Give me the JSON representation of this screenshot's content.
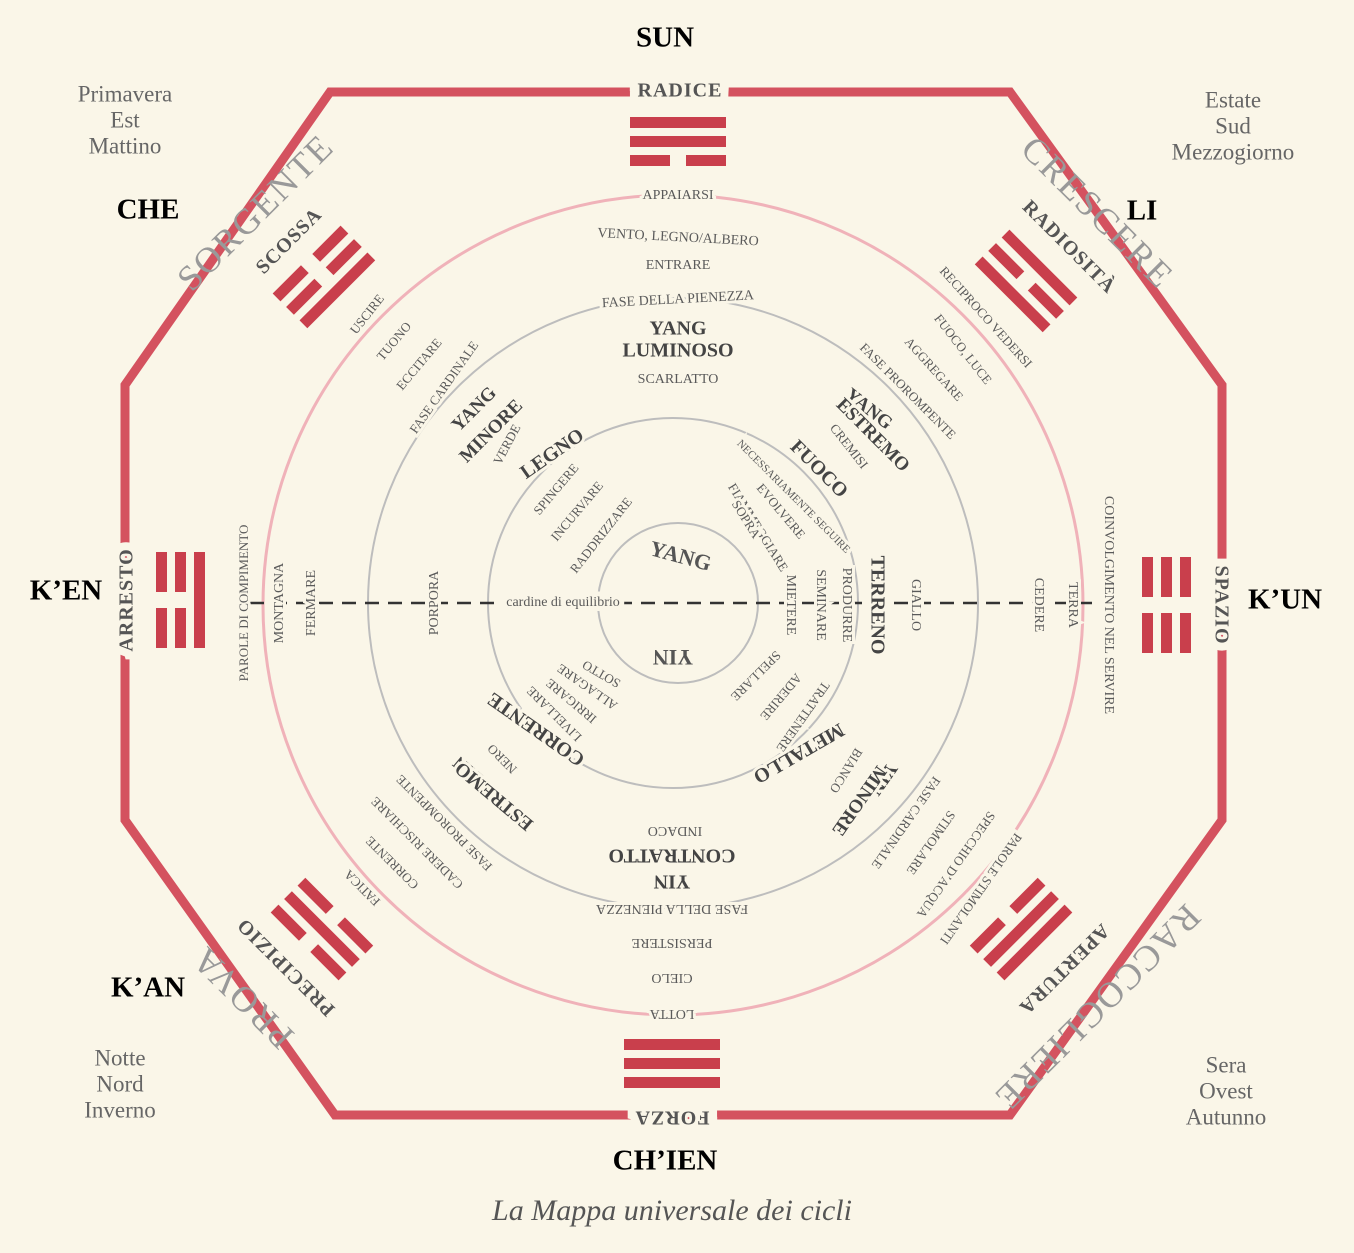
{
  "trigram_names": [
    "SUN",
    "LI",
    "K’UN",
    "CH’IEN",
    "K’AN",
    "K’EN",
    "CHE"
  ],
  "corners": [
    [
      "Primavera",
      "Est",
      "Mattino"
    ],
    [
      "Estate",
      "Sud",
      "Mezzogiorno"
    ],
    [
      "Notte",
      "Nord",
      "Inverno"
    ],
    [
      "Sera",
      "Ovest",
      "Autunno"
    ]
  ],
  "phases": [
    "SORGENTE",
    "CRESCERE",
    "RACCOGLIERE",
    "PROVA"
  ],
  "gates": [
    "RADICE",
    "RADIOSITÀ",
    "SPAZIO",
    "APERTURA",
    "FORZA",
    "PRECIPIZIO",
    "ARRESTO",
    "SCOSSA"
  ],
  "ring_labels": [
    "APPAIARSI",
    "VENTO, LEGNO/ALBERO",
    "ENTRARE",
    "FASE DELLA PIENEZZA",
    "YANG",
    "LUMINOSO",
    "SCARLATTO",
    "RECIPROCO VEDERSI",
    "FUOCO, LUCE",
    "AGGREGARE",
    "FASE PROROMPENTE",
    "YANG",
    "ESTREMO",
    "CREMISI",
    "COINVOLGIMENTO NEL SERVIRE",
    "TERRA",
    "CEDERE",
    "GIALLO",
    "TERRENO",
    "PRODURRE",
    "SEMINARE",
    "MIETERE",
    "FUOCO",
    "NECESSARIAMENTE SEGUIRE",
    "EVOLVERE",
    "FIAMMEGGIARE",
    "SOPRA",
    "LEGNO",
    "SPINGERE",
    "INCURVARE",
    "RADDRIZZARE",
    "YANG",
    "MINORE",
    "VERDE",
    "FASE CARDINALE",
    "ECCITARE",
    "TUONO",
    "USCIRE",
    "PAROLE DI COMPIMENTO",
    "MONTAGNA",
    "FERMARE",
    "PORPORA",
    "cardine di equilibrio",
    "SOTTO",
    "ALLAGARE",
    "IRRIGARE",
    "LIVELLARE",
    "CORRENTE",
    "NERO",
    "YIN",
    "ESTREMO",
    "FASE PROROMPENTE",
    "CADERE RISCHIARE",
    "CORRENTE",
    "FATICA",
    "SPELLARE",
    "ADERIRE",
    "TRATTENERE",
    "METALLO",
    "BIANCO",
    "YIN",
    "MINORE",
    "FASE CARDINALE",
    "STIMOLARE",
    "SPECCHIO D’ACQUA",
    "PAROLE STIMOLANTI",
    "INDACO",
    "CONTRATTO",
    "YIN",
    "FASE DELLA PIENEZZA",
    "PERSISTERE",
    "CIELO",
    "LOTTA"
  ],
  "center": [
    "YANG",
    "YIN"
  ],
  "caption": "La Mappa universale dei cicli"
}
